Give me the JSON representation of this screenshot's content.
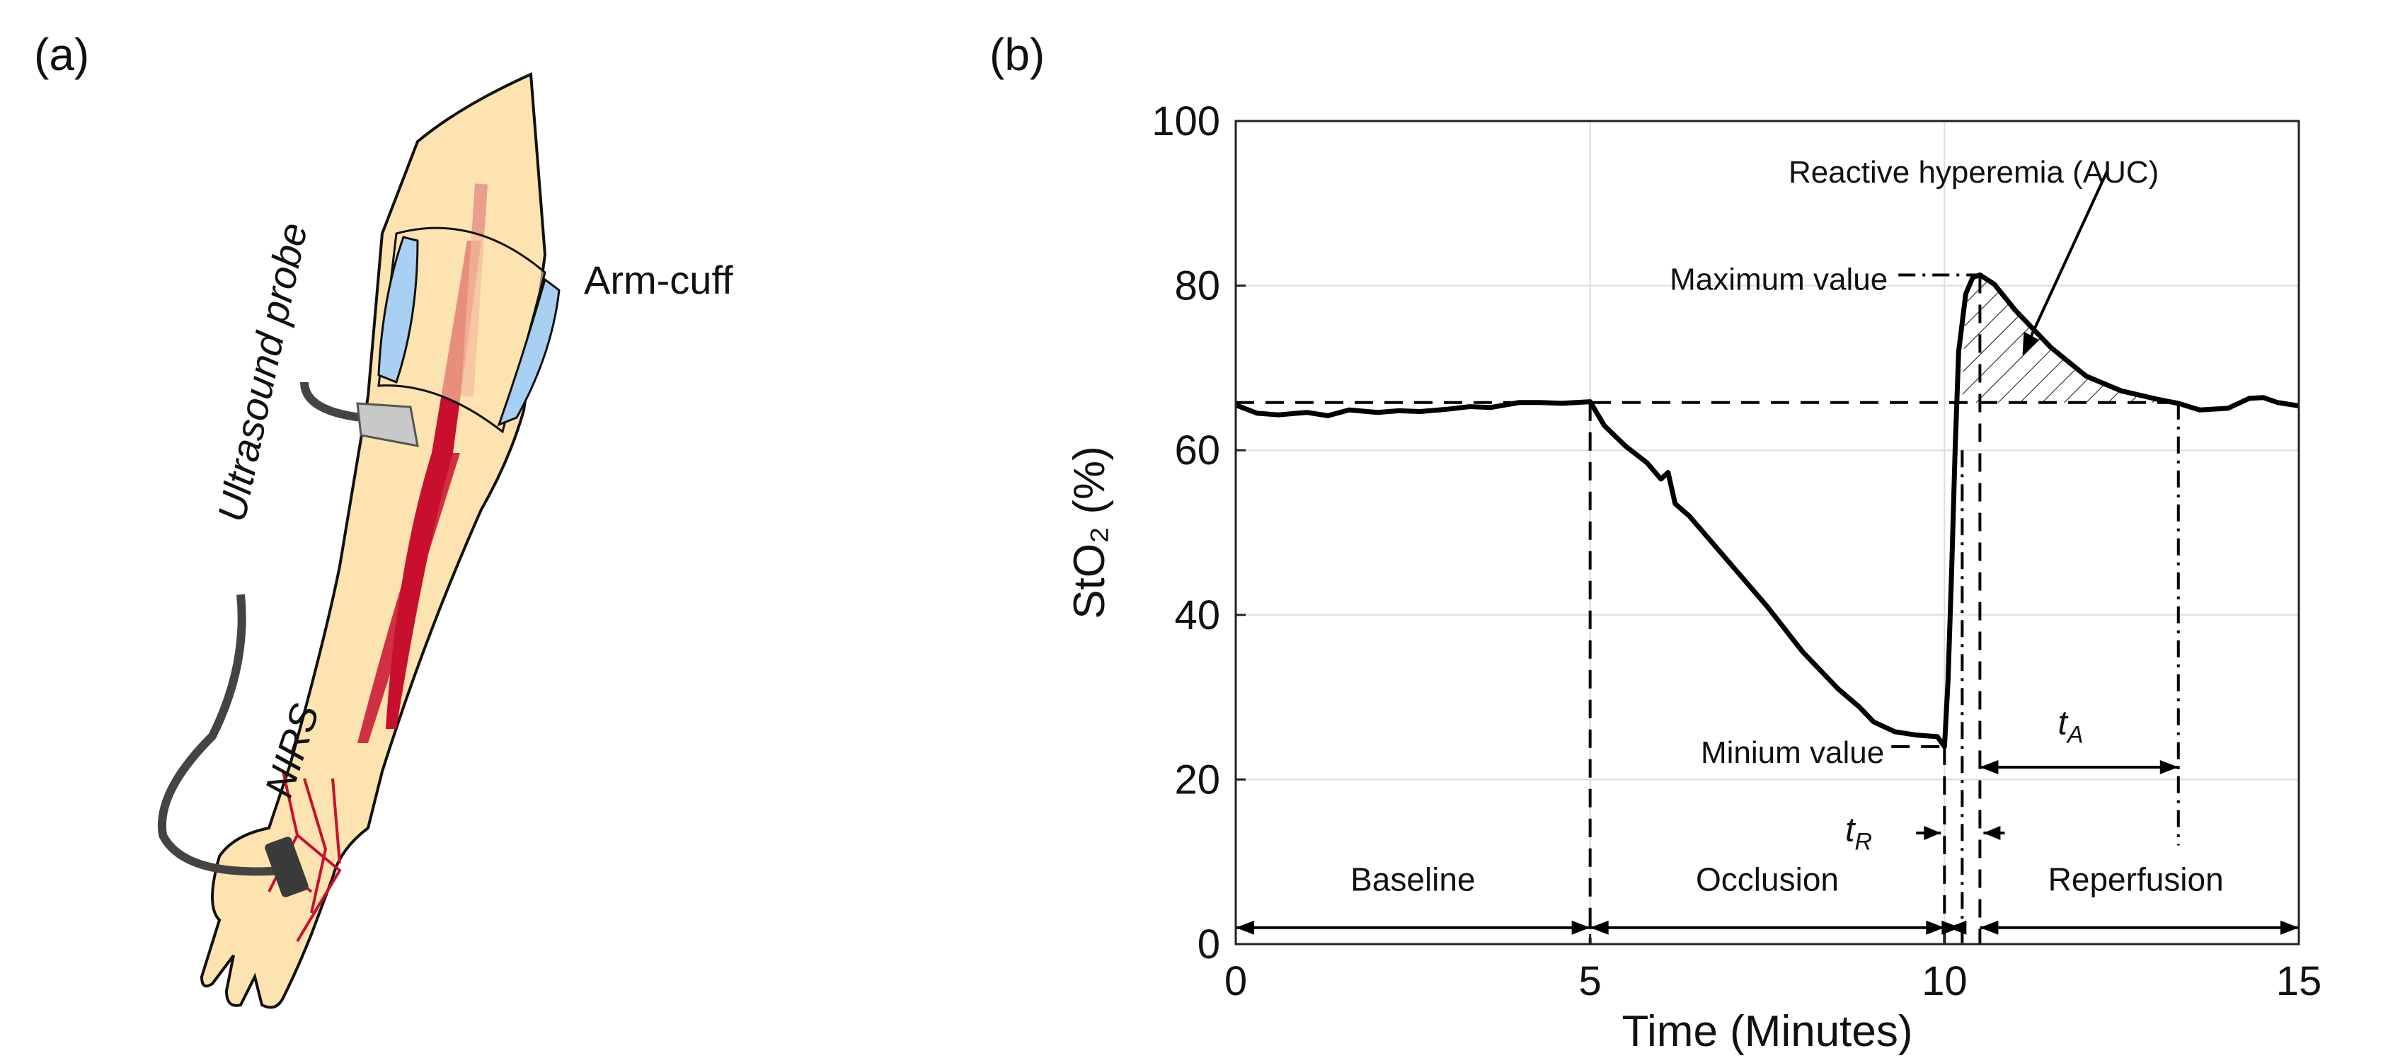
{
  "panel_a": {
    "label": "(a)",
    "labels": {
      "probe": "Ultrasound probe",
      "cuff": "Arm-cuff",
      "nirs": "NIRS"
    },
    "colors": {
      "skin": "#fde3b0",
      "cuff": "#a8d0f2",
      "artery": "#c8102e",
      "cable": "#444444"
    }
  },
  "panel_b": {
    "label": "(b)"
  },
  "chart_data": {
    "type": "line",
    "xlabel": "Time (Minutes)",
    "ylabel": "StO₂ (%)",
    "xlim": [
      0,
      15
    ],
    "ylim": [
      0,
      100
    ],
    "xticks": [
      "0",
      "5",
      "10",
      "15"
    ],
    "yticks": [
      "0",
      "20",
      "40",
      "60",
      "80",
      "100"
    ],
    "grid": true,
    "series": [
      {
        "x": [
          0,
          0.3,
          0.6,
          1,
          1.3,
          1.6,
          2,
          2.3,
          2.6,
          3,
          3.3,
          3.6,
          4,
          4.3,
          4.6,
          5,
          5.2,
          5.5,
          5.8,
          6,
          6.1,
          6.2,
          6.4,
          7,
          7.5,
          8,
          8.5,
          8.8,
          9,
          9.3,
          9.6,
          9.9,
          10,
          10.05,
          10.1,
          10.15,
          10.2,
          10.3,
          10.4,
          10.5,
          10.7,
          11,
          11.5,
          12,
          12.5,
          13,
          13.3,
          13.6,
          14,
          14.3,
          14.5,
          14.7,
          15
        ],
        "y": [
          65.5,
          64.5,
          64.3,
          64.6,
          64.2,
          64.9,
          64.6,
          64.8,
          64.7,
          65,
          65.3,
          65.2,
          65.8,
          65.8,
          65.7,
          65.9,
          63,
          60.5,
          58.5,
          56.5,
          57.3,
          53.5,
          52,
          46,
          41,
          35.5,
          31,
          28.8,
          27,
          25.8,
          25.4,
          25.2,
          24,
          32,
          45,
          60,
          72,
          79,
          81,
          81.3,
          80.2,
          77,
          72.5,
          69,
          67.2,
          66.2,
          65.7,
          64.9,
          65.1,
          66.3,
          66.4,
          65.8,
          65.4
        ]
      }
    ],
    "reference_level": 65.8,
    "annotations": {
      "auc": "Reactive hyperemia (AUC)",
      "max": "Maximum value",
      "min": "Minium value",
      "t_r": "t",
      "t_r_sub": "R",
      "t_a": "t",
      "t_a_sub": "A",
      "phases": [
        "Baseline",
        "Occlusion",
        "Reperfusion"
      ]
    },
    "markers": {
      "max_value": 81.3,
      "min_value": 24,
      "occlusion_start": 5,
      "occlusion_end": 10,
      "recovery_start": 10.25,
      "peak_time": 10.5,
      "recovery_end": 13.3
    }
  }
}
